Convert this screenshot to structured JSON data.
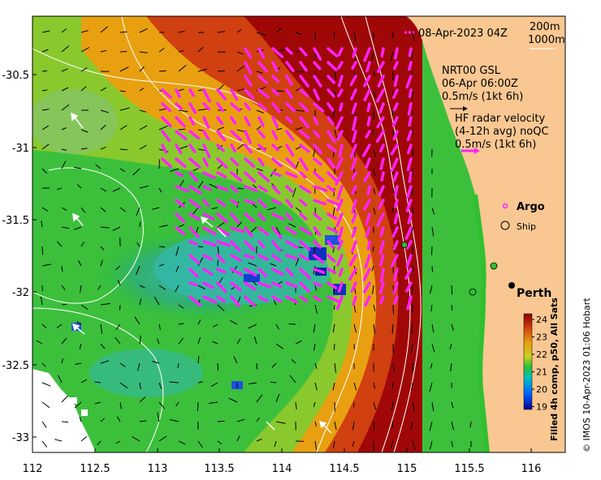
{
  "map": {
    "date_label": "08-Apr-2023 04Z",
    "contour_labels": [
      "200m",
      "1000m"
    ],
    "gsl_label": [
      "NRT00 GSL",
      "06-Apr 06:00Z",
      "0.5m/s (1kt 6h)"
    ],
    "hf_label": [
      "HF radar velocity",
      "(4-12h avg) noQC",
      "0.5m/s (1kt 6h)"
    ],
    "argo_label": "Argo",
    "ship_label": "Ship",
    "city_label": "Perth",
    "colorbar_title": "Filled 4h comp, p50, All Sats",
    "colorbar_ticks": [
      "24",
      "23",
      "22",
      "21",
      "20",
      "19"
    ],
    "copyright": "© IMOS 10-Apr-2023 01:06 Hobart",
    "x_ticks": [
      "112",
      "112.5",
      "113",
      "113.5",
      "114",
      "114.5",
      "115",
      "115.5",
      "116"
    ],
    "y_ticks": [
      "-30.5",
      "-31",
      "-31.5",
      "-32",
      "-32.5",
      "-33"
    ],
    "colors": {
      "land": "#f9c792",
      "hf_arrow": "#ff22ff",
      "sst_scale": [
        "#00008b",
        "#0040ff",
        "#00c0c0",
        "#30c030",
        "#c8d020",
        "#e8a010",
        "#d04010",
        "#8b0000"
      ]
    }
  }
}
